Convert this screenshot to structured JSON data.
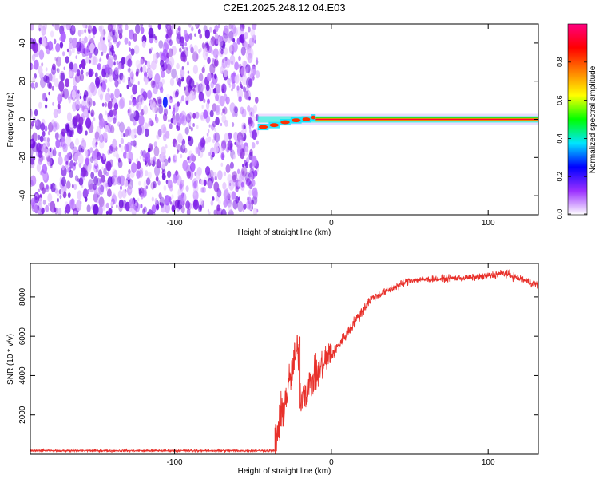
{
  "title": "C2E1.2025.248.12.04.E03",
  "chart_data": [
    {
      "type": "heatmap",
      "xlabel": "Height of straight line (km)",
      "ylabel": "Frequency (Hz)",
      "xlim": [
        -192,
        132
      ],
      "ylim": [
        -50,
        50
      ],
      "xticks": [
        -100,
        0,
        100
      ],
      "yticks": [
        -40,
        -20,
        0,
        20,
        40
      ],
      "noise_region_x": [
        -192,
        -47
      ],
      "signal_line_x": [
        -47,
        132
      ],
      "signal_freq": 0,
      "colorbar": {
        "label": "Normalized spectral amplitude",
        "range": [
          0,
          1
        ],
        "ticks": [
          0.0,
          0.2,
          0.4,
          0.6,
          0.8
        ],
        "tick_labels": [
          "0.0",
          "0.2",
          "0.4",
          "0.6",
          "0.8"
        ],
        "colors": [
          "#ffffff",
          "#9b30ff",
          "#0000ff",
          "#00e5ff",
          "#00ff00",
          "#ffff00",
          "#ff8000",
          "#ff0000",
          "#ff0080"
        ]
      }
    },
    {
      "type": "line",
      "xlabel": "Height of straight line (km)",
      "ylabel": "SNR (10 * v/v)",
      "xlim": [
        -192,
        132
      ],
      "ylim": [
        0,
        9700
      ],
      "xticks": [
        -100,
        0,
        100
      ],
      "yticks": [
        2000,
        4000,
        6000,
        8000
      ],
      "color": "#e8302a",
      "segments": [
        {
          "x": [
            -192,
            -36
          ],
          "y": [
            180,
            180
          ],
          "noise": 80
        },
        {
          "x": [
            -36,
            -20
          ],
          "y": [
            600,
            5800
          ],
          "noise": 1600
        },
        {
          "x": [
            -20,
            0
          ],
          "y": [
            2800,
            5200
          ],
          "noise": 1300
        },
        {
          "x": [
            0,
            25
          ],
          "y": [
            5000,
            7900
          ],
          "noise": 450
        },
        {
          "x": [
            25,
            50
          ],
          "y": [
            7900,
            8850
          ],
          "noise": 300
        },
        {
          "x": [
            50,
            95
          ],
          "y": [
            8850,
            9000
          ],
          "noise": 250
        },
        {
          "x": [
            95,
            110
          ],
          "y": [
            9000,
            9200
          ],
          "noise": 300
        },
        {
          "x": [
            110,
            132
          ],
          "y": [
            9200,
            8600
          ],
          "noise": 300
        }
      ]
    }
  ]
}
